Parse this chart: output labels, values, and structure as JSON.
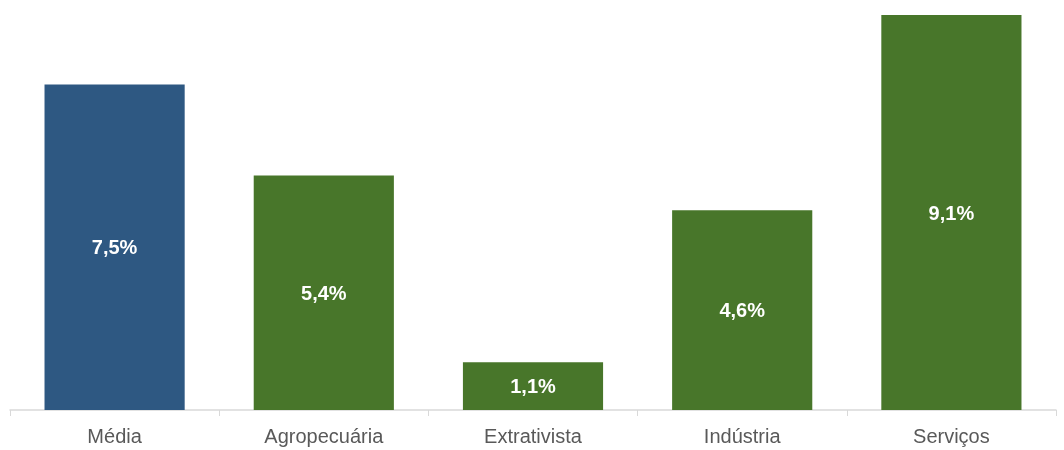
{
  "chart_data": {
    "type": "bar",
    "categories": [
      "Média",
      "Agropecuária",
      "Extrativista",
      "Indústria",
      "Serviços"
    ],
    "values": [
      7.5,
      5.4,
      1.1,
      4.6,
      9.1
    ],
    "colors": [
      "#2e5882",
      "#48762a",
      "#48762a",
      "#48762a",
      "#48762a"
    ],
    "value_labels": [
      "7,5%",
      "5,4%",
      "1,1%",
      "4,6%",
      "9,1%"
    ]
  }
}
